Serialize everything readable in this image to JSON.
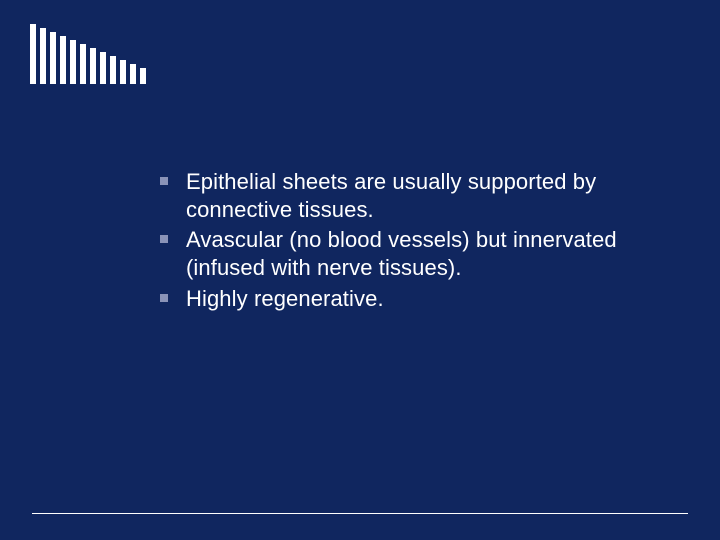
{
  "background_color": "#10265f",
  "comb": {
    "count": 12,
    "tooth_width": 6,
    "gap": 4,
    "color": "#ffffff",
    "heights": [
      60,
      56,
      52,
      48,
      44,
      40,
      36,
      32,
      28,
      24,
      20,
      16
    ]
  },
  "bullets": {
    "marker_color": "#8a93b8",
    "text_color": "#ffffff",
    "font_size": 22,
    "items": [
      {
        "text": "Epithelial sheets are usually supported by connective tissues."
      },
      {
        "text": "Avascular (no blood vessels) but innervated (infused with nerve tissues)."
      },
      {
        "text": "Highly regenerative."
      }
    ]
  },
  "divider_color": "#ffffff"
}
